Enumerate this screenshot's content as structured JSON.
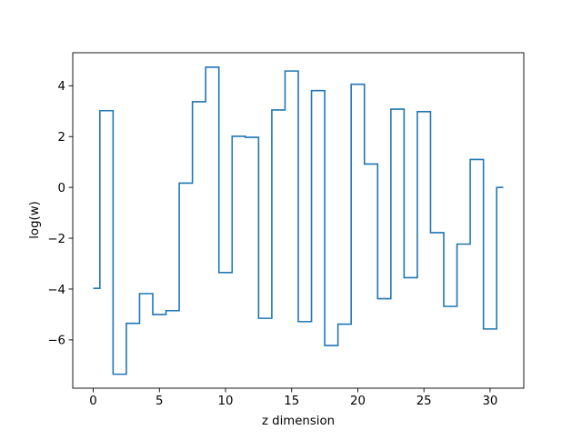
{
  "chart_data": {
    "type": "line",
    "drawstyle": "steps-mid",
    "title": "",
    "xlabel": "z dimension",
    "ylabel": "log(w)",
    "xlim": [
      -1.55,
      32.55
    ],
    "ylim": [
      -7.9,
      5.3
    ],
    "xticks": [
      0,
      5,
      10,
      15,
      20,
      25,
      30
    ],
    "yticks": [
      -6,
      -4,
      -2,
      0,
      2,
      4
    ],
    "grid": false,
    "legend": "none",
    "colors": {
      "line": "#1f77b4",
      "axes": "#000000",
      "background": "#ffffff"
    },
    "series": [
      {
        "x": [
          0,
          1,
          2,
          3,
          4,
          5,
          6,
          7,
          8,
          9,
          10,
          11,
          12,
          13,
          14,
          15,
          16,
          17,
          18,
          19,
          20,
          21,
          22,
          23,
          24,
          25,
          26,
          27,
          28,
          29,
          30,
          31
        ],
        "values": [
          -3.97,
          3.02,
          -7.35,
          -5.35,
          -4.18,
          -5.0,
          -4.85,
          0.17,
          3.37,
          4.73,
          -3.35,
          2.01,
          1.97,
          -5.15,
          3.05,
          4.58,
          -5.28,
          3.81,
          -6.22,
          -5.38,
          4.06,
          0.92,
          -4.38,
          3.08,
          -3.55,
          2.98,
          -1.78,
          -4.68,
          -2.23,
          1.1,
          -5.57,
          0.0
        ]
      }
    ]
  }
}
